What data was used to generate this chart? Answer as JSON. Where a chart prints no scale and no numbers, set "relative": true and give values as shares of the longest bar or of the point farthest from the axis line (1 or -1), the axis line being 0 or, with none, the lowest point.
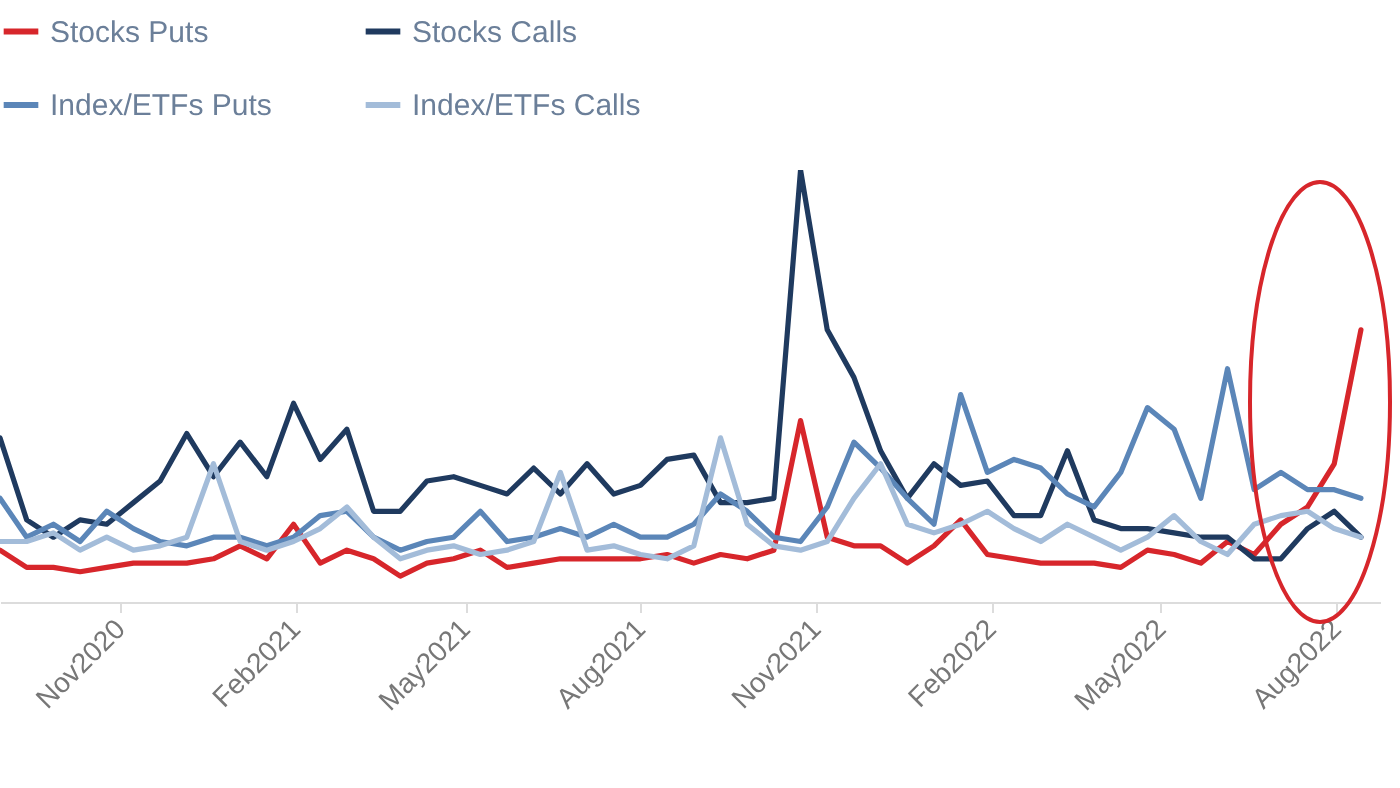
{
  "chart_data": {
    "type": "line",
    "relative": true,
    "legend": "top left",
    "grid": false,
    "marker": "none",
    "line_style": "solid",
    "x": [
      "2020-08-30",
      "2020-09-13",
      "2020-09-27",
      "2020-10-11",
      "2020-10-25",
      "2020-11-08",
      "2020-11-22",
      "2020-12-06",
      "2020-12-20",
      "2021-01-03",
      "2021-01-17",
      "2021-01-31",
      "2021-02-14",
      "2021-02-28",
      "2021-03-14",
      "2021-03-28",
      "2021-04-11",
      "2021-04-25",
      "2021-05-09",
      "2021-05-23",
      "2021-06-06",
      "2021-06-20",
      "2021-07-04",
      "2021-07-18",
      "2021-08-01",
      "2021-08-15",
      "2021-08-29",
      "2021-09-12",
      "2021-09-26",
      "2021-10-10",
      "2021-10-24",
      "2021-11-07",
      "2021-11-21",
      "2021-12-05",
      "2021-12-19",
      "2022-01-02",
      "2022-01-16",
      "2022-01-30",
      "2022-02-13",
      "2022-02-27",
      "2022-03-13",
      "2022-03-27",
      "2022-04-10",
      "2022-04-24",
      "2022-05-08",
      "2022-05-22",
      "2022-06-05",
      "2022-06-19",
      "2022-07-03",
      "2022-07-17",
      "2022-07-31",
      "2022-08-14"
    ],
    "xlim": [
      "2020-08-30",
      "2022-08-24"
    ],
    "xticks": [
      {
        "value": "2020-11-01",
        "label": "Nov2020"
      },
      {
        "value": "2021-02-01",
        "label": "Feb2021"
      },
      {
        "value": "2021-05-01",
        "label": "May2021"
      },
      {
        "value": "2021-08-01",
        "label": "Aug2021"
      },
      {
        "value": "2021-11-01",
        "label": "Nov2021"
      },
      {
        "value": "2022-02-01",
        "label": "Feb2022"
      },
      {
        "value": "2022-05-01",
        "label": "May2022"
      },
      {
        "value": "2022-08-01",
        "label": "Aug2022"
      }
    ],
    "series": [
      {
        "name": "Stocks Puts",
        "color": "#d7262b",
        "values": [
          0.12,
          0.08,
          0.08,
          0.07,
          0.08,
          0.09,
          0.09,
          0.09,
          0.1,
          0.13,
          0.1,
          0.18,
          0.09,
          0.12,
          0.1,
          0.06,
          0.09,
          0.1,
          0.12,
          0.08,
          0.09,
          0.1,
          0.1,
          0.1,
          0.1,
          0.11,
          0.09,
          0.11,
          0.1,
          0.12,
          0.42,
          0.15,
          0.13,
          0.13,
          0.09,
          0.13,
          0.19,
          0.11,
          0.1,
          0.09,
          0.09,
          0.09,
          0.08,
          0.12,
          0.11,
          0.09,
          0.14,
          0.11,
          0.18,
          0.22,
          0.32,
          0.63
        ]
      },
      {
        "name": "Stocks Calls",
        "color": "#1f3a5f",
        "values": [
          0.38,
          0.19,
          0.15,
          0.19,
          0.18,
          0.23,
          0.28,
          0.39,
          0.29,
          0.37,
          0.29,
          0.46,
          0.33,
          0.4,
          0.21,
          0.21,
          0.28,
          0.29,
          0.27,
          0.25,
          0.31,
          0.25,
          0.32,
          0.25,
          0.27,
          0.33,
          0.34,
          0.23,
          0.23,
          0.24,
          1.0,
          0.63,
          0.52,
          0.35,
          0.24,
          0.32,
          0.27,
          0.28,
          0.2,
          0.2,
          0.35,
          0.19,
          0.17,
          0.17,
          0.16,
          0.15,
          0.15,
          0.1,
          0.1,
          0.17,
          0.21,
          0.15
        ]
      },
      {
        "name": "Index/ETFs Puts",
        "color": "#5b86b8",
        "values": [
          0.24,
          0.15,
          0.18,
          0.14,
          0.21,
          0.17,
          0.14,
          0.13,
          0.15,
          0.15,
          0.13,
          0.15,
          0.2,
          0.21,
          0.15,
          0.12,
          0.14,
          0.15,
          0.21,
          0.14,
          0.15,
          0.17,
          0.15,
          0.18,
          0.15,
          0.15,
          0.18,
          0.25,
          0.21,
          0.15,
          0.14,
          0.22,
          0.37,
          0.31,
          0.24,
          0.18,
          0.48,
          0.3,
          0.33,
          0.31,
          0.25,
          0.22,
          0.3,
          0.45,
          0.4,
          0.24,
          0.54,
          0.26,
          0.3,
          0.26,
          0.26,
          0.24
        ]
      },
      {
        "name": "Index/ETFs Calls",
        "color": "#a3bcd9",
        "values": [
          0.14,
          0.14,
          0.16,
          0.12,
          0.15,
          0.12,
          0.13,
          0.15,
          0.32,
          0.14,
          0.12,
          0.14,
          0.17,
          0.22,
          0.15,
          0.1,
          0.12,
          0.13,
          0.11,
          0.12,
          0.14,
          0.3,
          0.12,
          0.13,
          0.11,
          0.1,
          0.13,
          0.38,
          0.18,
          0.13,
          0.12,
          0.14,
          0.24,
          0.32,
          0.18,
          0.16,
          0.18,
          0.21,
          0.17,
          0.14,
          0.18,
          0.15,
          0.12,
          0.15,
          0.2,
          0.14,
          0.11,
          0.18,
          0.2,
          0.21,
          0.17,
          0.15
        ]
      }
    ]
  }
}
